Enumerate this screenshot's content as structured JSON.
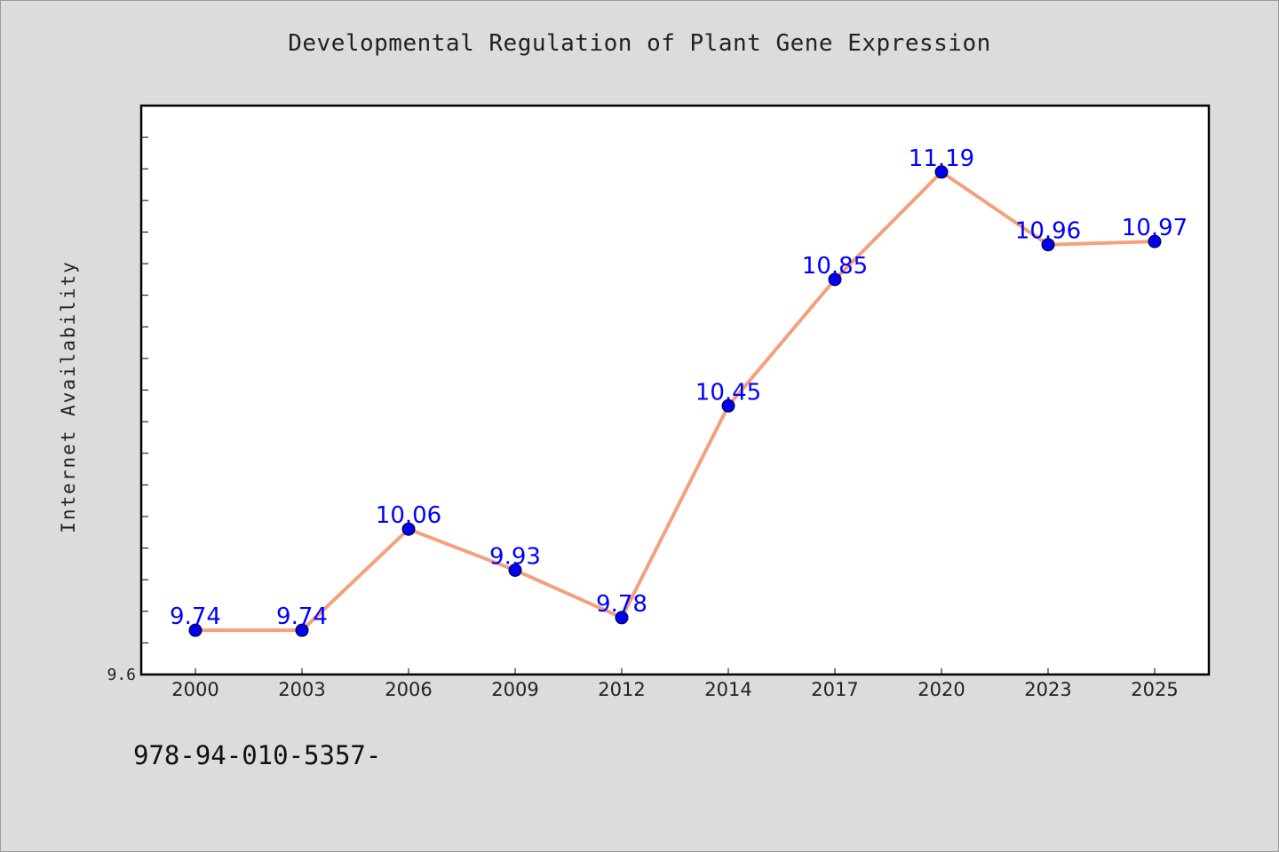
{
  "chart_data": {
    "type": "line",
    "title": "Developmental Regulation of Plant Gene Expression",
    "xlabel": "",
    "ylabel": "Internet Availability",
    "categories": [
      "2000",
      "2003",
      "2006",
      "2009",
      "2012",
      "2014",
      "2017",
      "2020",
      "2023",
      "2025"
    ],
    "values": [
      9.74,
      9.74,
      10.06,
      9.93,
      9.78,
      10.45,
      10.85,
      11.19,
      10.96,
      10.97
    ],
    "data_labels": [
      "9.74",
      "9.74",
      "10.06",
      "9.93",
      "9.78",
      "10.45",
      "10.85",
      "11.19",
      "10.96",
      "10.97"
    ],
    "y_tick_labels": [
      "9.6"
    ],
    "ylim": [
      9.6,
      11.4
    ],
    "grid": false,
    "legend": "none",
    "colors": {
      "line": "#f4a07c",
      "marker": "#0000ee",
      "data_label": "#0000ff",
      "background": "#dcdcdc",
      "plot_background": "#ffffff"
    }
  },
  "footer": {
    "text": "978-94-010-5357-"
  }
}
